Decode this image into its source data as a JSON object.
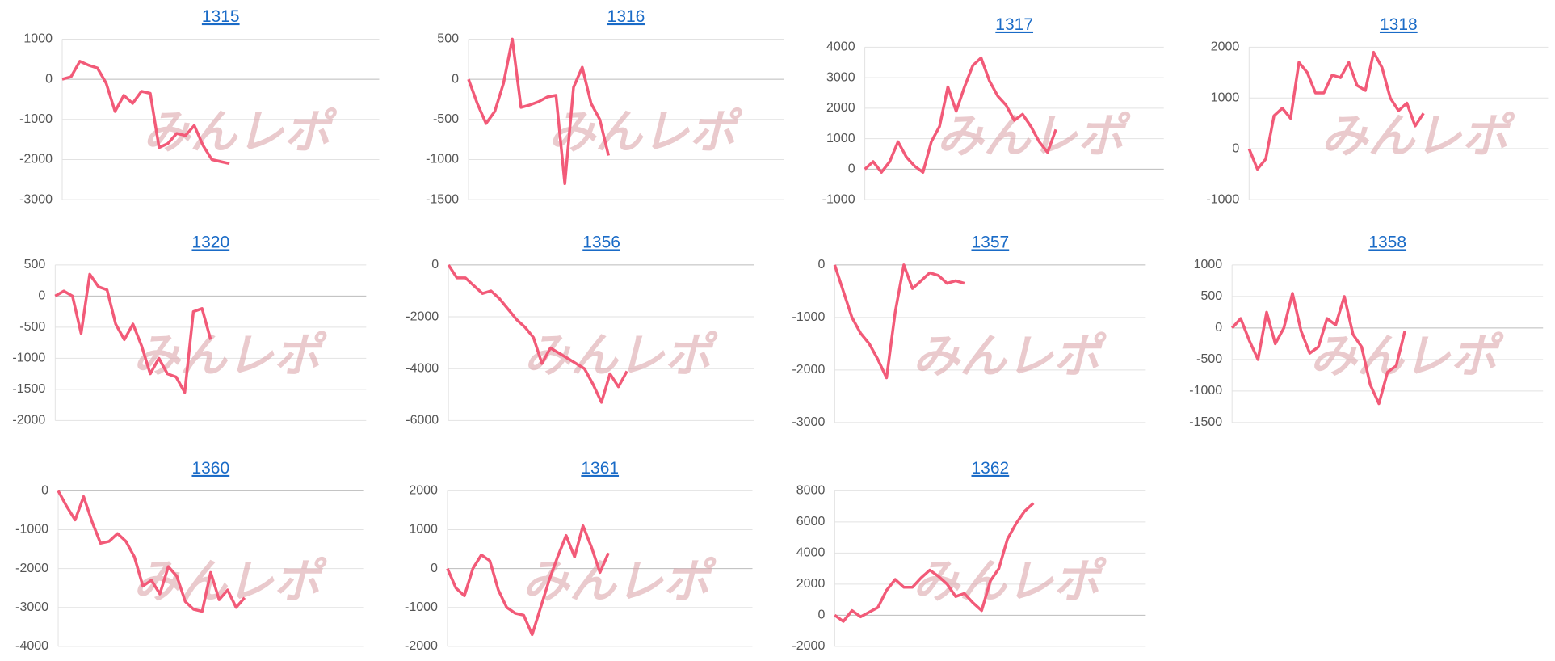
{
  "watermark": "みんレポ",
  "chart_data": [
    {
      "type": "line",
      "title": "1315",
      "color": "#f25a78",
      "grid": true,
      "ylim": [
        -3000,
        1000
      ],
      "yticks": [
        1000,
        0,
        -1000,
        -2000,
        -3000
      ],
      "values": [
        0,
        60,
        450,
        350,
        280,
        -100,
        -800,
        -400,
        -600,
        -300,
        -350,
        -1700,
        -1600,
        -1350,
        -1400,
        -1150,
        -1650,
        -2000,
        -2050,
        -2100
      ]
    },
    {
      "type": "line",
      "title": "1316",
      "color": "#f25a78",
      "grid": true,
      "ylim": [
        -1500,
        500
      ],
      "yticks": [
        500,
        0,
        -500,
        -1000,
        -1500
      ],
      "values": [
        0,
        -300,
        -550,
        -400,
        -50,
        500,
        -350,
        -320,
        -280,
        -220,
        -200,
        -1300,
        -100,
        150,
        -300,
        -500,
        -950
      ]
    },
    {
      "type": "line",
      "title": "1317",
      "color": "#f25a78",
      "grid": true,
      "ylim": [
        -1000,
        4000
      ],
      "yticks": [
        4000,
        3000,
        2000,
        1000,
        0,
        -1000
      ],
      "values": [
        0,
        250,
        -100,
        250,
        900,
        400,
        100,
        -100,
        900,
        1400,
        2700,
        1900,
        2700,
        3400,
        3650,
        2900,
        2400,
        2100,
        1600,
        1800,
        1400,
        900,
        550,
        1300
      ]
    },
    {
      "type": "line",
      "title": "1318",
      "color": "#f25a78",
      "grid": true,
      "ylim": [
        -1000,
        2000
      ],
      "yticks": [
        2000,
        1000,
        0,
        -1000
      ],
      "values": [
        0,
        -400,
        -200,
        650,
        800,
        600,
        1700,
        1500,
        1100,
        1100,
        1450,
        1400,
        1700,
        1250,
        1150,
        1900,
        1600,
        1000,
        750,
        900,
        450,
        700
      ]
    },
    {
      "type": "line",
      "title": "1320",
      "color": "#f25a78",
      "grid": true,
      "ylim": [
        -2000,
        500
      ],
      "yticks": [
        500,
        0,
        -500,
        -1000,
        -1500,
        -2000
      ],
      "values": [
        0,
        80,
        0,
        -600,
        350,
        150,
        100,
        -450,
        -700,
        -450,
        -800,
        -1250,
        -1000,
        -1250,
        -1300,
        -1550,
        -250,
        -200,
        -700
      ]
    },
    {
      "type": "line",
      "title": "1356",
      "color": "#f25a78",
      "grid": true,
      "ylim": [
        -6000,
        0
      ],
      "yticks": [
        0,
        -2000,
        -4000,
        -6000
      ],
      "values": [
        0,
        -500,
        -500,
        -800,
        -1100,
        -1000,
        -1300,
        -1700,
        -2100,
        -2400,
        -2800,
        -3800,
        -3200,
        -3400,
        -3600,
        -3800,
        -4000,
        -4600,
        -5300,
        -4200,
        -4700,
        -4100
      ]
    },
    {
      "type": "line",
      "title": "1357",
      "color": "#f25a78",
      "grid": true,
      "ylim": [
        -3000,
        0
      ],
      "yticks": [
        0,
        -1000,
        -2000,
        -3000
      ],
      "values": [
        0,
        -500,
        -1000,
        -1300,
        -1500,
        -1800,
        -2150,
        -900,
        0,
        -450,
        -300,
        -150,
        -200,
        -350,
        -300,
        -350
      ]
    },
    {
      "type": "line",
      "title": "1358",
      "color": "#f25a78",
      "grid": true,
      "ylim": [
        -1500,
        1000
      ],
      "yticks": [
        1000,
        500,
        0,
        -500,
        -1000,
        -1500
      ],
      "values": [
        0,
        150,
        -200,
        -500,
        250,
        -250,
        0,
        550,
        -50,
        -400,
        -300,
        150,
        50,
        500,
        -100,
        -300,
        -900,
        -1200,
        -700,
        -600,
        -50
      ]
    },
    {
      "type": "line",
      "title": "1360",
      "color": "#f25a78",
      "grid": true,
      "ylim": [
        -4000,
        0
      ],
      "yticks": [
        0,
        -1000,
        -2000,
        -3000,
        -4000
      ],
      "values": [
        0,
        -400,
        -750,
        -150,
        -800,
        -1350,
        -1300,
        -1100,
        -1300,
        -1700,
        -2450,
        -2300,
        -2650,
        -1950,
        -2200,
        -2850,
        -3050,
        -3100,
        -2100,
        -2800,
        -2550,
        -3000,
        -2750
      ]
    },
    {
      "type": "line",
      "title": "1361",
      "color": "#f25a78",
      "grid": true,
      "ylim": [
        -2000,
        2000
      ],
      "yticks": [
        2000,
        1000,
        0,
        -1000,
        -2000
      ],
      "values": [
        0,
        -500,
        -700,
        0,
        350,
        200,
        -550,
        -1000,
        -1150,
        -1200,
        -1700,
        -1000,
        -300,
        300,
        850,
        300,
        1100,
        550,
        -100,
        400
      ]
    },
    {
      "type": "line",
      "title": "1362",
      "color": "#f25a78",
      "grid": true,
      "ylim": [
        -2000,
        8000
      ],
      "yticks": [
        8000,
        6000,
        4000,
        2000,
        0,
        -2000
      ],
      "values": [
        0,
        -400,
        300,
        -100,
        200,
        500,
        1600,
        2300,
        1800,
        1800,
        2400,
        2900,
        2500,
        2000,
        1200,
        1400,
        800,
        300,
        2200,
        3000,
        4900,
        5900,
        6700,
        7200
      ]
    }
  ]
}
